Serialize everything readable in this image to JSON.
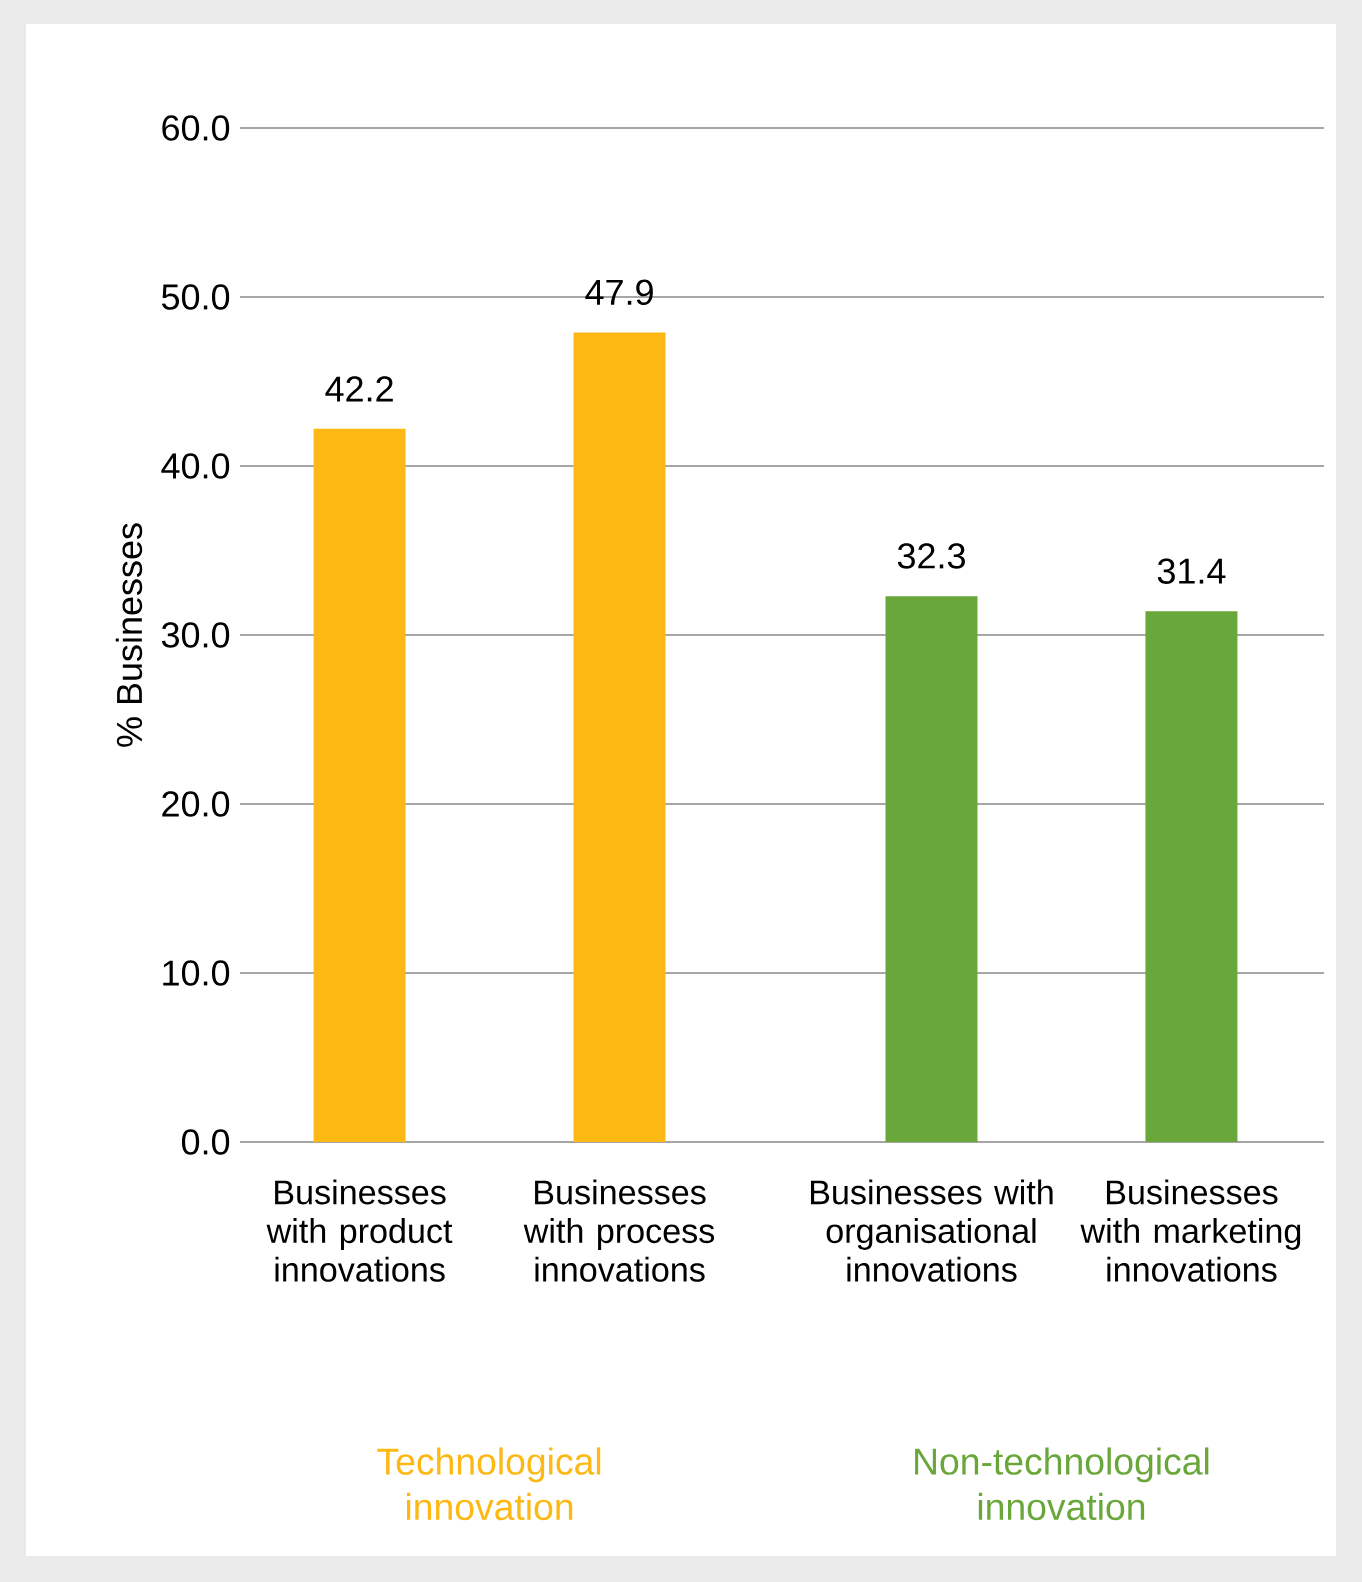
{
  "chart_data": {
    "type": "bar",
    "ylabel": "% Businesses",
    "categories": [
      "Businesses with product innovations",
      "Businesses with process innovations",
      "Businesses with organisational innovations",
      "Businesses with marketing innovations"
    ],
    "values": [
      42.2,
      47.9,
      32.3,
      31.4
    ],
    "colors": [
      "#fdb813",
      "#fdb813",
      "#6aa73b",
      "#6aa73b"
    ],
    "ylim": [
      0,
      60
    ],
    "yticks": [
      {
        "value": 0,
        "label": "0.0"
      },
      {
        "value": 10,
        "label": "10.0"
      },
      {
        "value": 20,
        "label": "20.0"
      },
      {
        "value": 30,
        "label": "30.0"
      },
      {
        "value": 40,
        "label": "40.0"
      },
      {
        "value": 50,
        "label": "50.0"
      },
      {
        "value": 60,
        "label": "60.0"
      }
    ],
    "grid": "y",
    "data_labels": true,
    "annotations": [
      "Technological innovation",
      "Non-technological innovation"
    ]
  }
}
